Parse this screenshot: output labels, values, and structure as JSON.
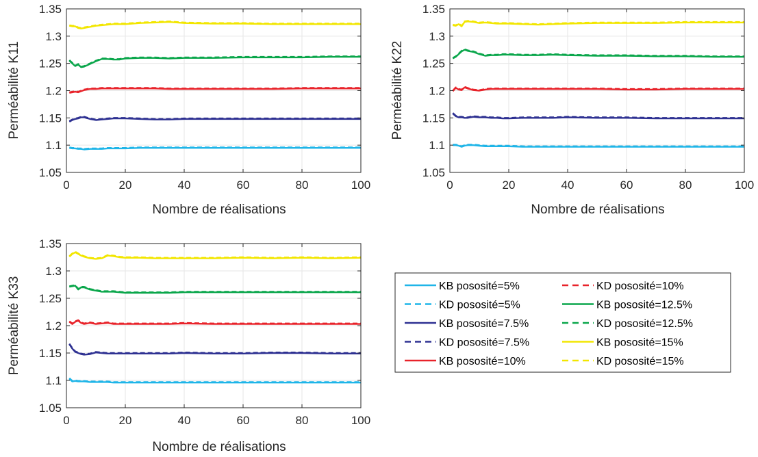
{
  "chart_data": [
    {
      "type": "line",
      "title": "",
      "xlabel": "Nombre de réalisations",
      "ylabel": "Perméabilité K11",
      "xlim": [
        0,
        100
      ],
      "ylim": [
        1.05,
        1.35
      ],
      "xticks": [
        "0",
        "20",
        "40",
        "60",
        "80",
        "100"
      ],
      "yticks": [
        "1.05",
        "1.1",
        "1.15",
        "1.2",
        "1.25",
        "1.3",
        "1.35"
      ],
      "grid": true,
      "x": [
        1,
        2,
        3,
        4,
        5,
        6,
        8,
        10,
        12,
        14,
        16,
        18,
        20,
        25,
        30,
        35,
        40,
        50,
        60,
        70,
        80,
        90,
        100
      ],
      "series": [
        {
          "key": "kb5",
          "values": [
            1.095,
            1.094,
            1.094,
            1.093,
            1.093,
            1.092,
            1.093,
            1.093,
            1.093,
            1.094,
            1.094,
            1.094,
            1.094,
            1.095,
            1.095,
            1.095,
            1.095,
            1.095,
            1.095,
            1.095,
            1.095,
            1.095,
            1.095
          ]
        },
        {
          "key": "kd5",
          "values": [
            1.096,
            1.095,
            1.095,
            1.094,
            1.094,
            1.093,
            1.094,
            1.094,
            1.094,
            1.095,
            1.095,
            1.095,
            1.095,
            1.096,
            1.096,
            1.096,
            1.096,
            1.096,
            1.096,
            1.096,
            1.096,
            1.096,
            1.096
          ]
        },
        {
          "key": "kb75",
          "values": [
            1.143,
            1.146,
            1.148,
            1.149,
            1.151,
            1.151,
            1.148,
            1.146,
            1.147,
            1.148,
            1.149,
            1.149,
            1.149,
            1.148,
            1.147,
            1.147,
            1.148,
            1.148,
            1.148,
            1.148,
            1.148,
            1.148,
            1.148
          ]
        },
        {
          "key": "kd75",
          "values": [
            1.144,
            1.147,
            1.149,
            1.15,
            1.152,
            1.152,
            1.149,
            1.147,
            1.148,
            1.149,
            1.15,
            1.15,
            1.15,
            1.149,
            1.148,
            1.148,
            1.149,
            1.149,
            1.149,
            1.149,
            1.149,
            1.149,
            1.149
          ]
        },
        {
          "key": "kb10",
          "values": [
            1.196,
            1.197,
            1.198,
            1.197,
            1.199,
            1.201,
            1.203,
            1.203,
            1.204,
            1.204,
            1.204,
            1.204,
            1.204,
            1.204,
            1.204,
            1.203,
            1.203,
            1.203,
            1.203,
            1.203,
            1.204,
            1.204,
            1.204
          ]
        },
        {
          "key": "kd10",
          "values": [
            1.197,
            1.198,
            1.199,
            1.198,
            1.2,
            1.202,
            1.204,
            1.204,
            1.205,
            1.205,
            1.205,
            1.205,
            1.205,
            1.205,
            1.205,
            1.204,
            1.204,
            1.204,
            1.204,
            1.204,
            1.205,
            1.205,
            1.205
          ]
        },
        {
          "key": "kb125",
          "values": [
            1.255,
            1.25,
            1.245,
            1.248,
            1.243,
            1.244,
            1.249,
            1.254,
            1.258,
            1.258,
            1.257,
            1.257,
            1.259,
            1.26,
            1.26,
            1.259,
            1.26,
            1.26,
            1.261,
            1.261,
            1.261,
            1.262,
            1.262
          ]
        },
        {
          "key": "kd125",
          "values": [
            1.256,
            1.251,
            1.246,
            1.249,
            1.244,
            1.245,
            1.25,
            1.255,
            1.259,
            1.259,
            1.258,
            1.258,
            1.26,
            1.261,
            1.261,
            1.26,
            1.261,
            1.261,
            1.262,
            1.262,
            1.262,
            1.263,
            1.263
          ]
        },
        {
          "key": "kb15",
          "values": [
            1.319,
            1.318,
            1.318,
            1.315,
            1.314,
            1.315,
            1.317,
            1.319,
            1.32,
            1.321,
            1.322,
            1.322,
            1.322,
            1.324,
            1.325,
            1.326,
            1.324,
            1.323,
            1.323,
            1.322,
            1.322,
            1.322,
            1.322
          ]
        },
        {
          "key": "kd15",
          "values": [
            1.32,
            1.319,
            1.319,
            1.316,
            1.315,
            1.316,
            1.318,
            1.32,
            1.321,
            1.322,
            1.323,
            1.323,
            1.323,
            1.325,
            1.326,
            1.327,
            1.325,
            1.324,
            1.324,
            1.323,
            1.323,
            1.323,
            1.323
          ]
        }
      ]
    },
    {
      "type": "line",
      "title": "",
      "xlabel": "Nombre de réalisations",
      "ylabel": "Perméabilité K22",
      "xlim": [
        0,
        100
      ],
      "ylim": [
        1.05,
        1.35
      ],
      "xticks": [
        "0",
        "20",
        "40",
        "60",
        "80",
        "100"
      ],
      "yticks": [
        "1.05",
        "1.1",
        "1.15",
        "1.2",
        "1.25",
        "1.3",
        "1.35"
      ],
      "grid": true,
      "x": [
        1,
        2,
        3,
        4,
        5,
        6,
        8,
        10,
        12,
        14,
        16,
        18,
        20,
        25,
        30,
        35,
        40,
        50,
        60,
        70,
        80,
        90,
        100
      ],
      "series": [
        {
          "key": "kb5",
          "values": [
            1.1,
            1.1,
            1.099,
            1.097,
            1.099,
            1.1,
            1.1,
            1.099,
            1.098,
            1.098,
            1.098,
            1.098,
            1.098,
            1.097,
            1.097,
            1.097,
            1.097,
            1.097,
            1.097,
            1.097,
            1.097,
            1.097,
            1.097
          ]
        },
        {
          "key": "kd5",
          "values": [
            1.101,
            1.101,
            1.1,
            1.098,
            1.1,
            1.101,
            1.101,
            1.1,
            1.099,
            1.099,
            1.099,
            1.099,
            1.099,
            1.098,
            1.098,
            1.098,
            1.098,
            1.098,
            1.098,
            1.098,
            1.098,
            1.098,
            1.098
          ]
        },
        {
          "key": "kb75",
          "values": [
            1.158,
            1.153,
            1.151,
            1.151,
            1.15,
            1.15,
            1.152,
            1.151,
            1.151,
            1.15,
            1.15,
            1.149,
            1.149,
            1.15,
            1.15,
            1.15,
            1.151,
            1.15,
            1.15,
            1.149,
            1.149,
            1.149,
            1.149
          ]
        },
        {
          "key": "kd75",
          "values": [
            1.159,
            1.154,
            1.152,
            1.152,
            1.151,
            1.151,
            1.153,
            1.152,
            1.152,
            1.151,
            1.151,
            1.15,
            1.15,
            1.151,
            1.151,
            1.151,
            1.152,
            1.151,
            1.151,
            1.15,
            1.15,
            1.15,
            1.15
          ]
        },
        {
          "key": "kb10",
          "values": [
            1.199,
            1.205,
            1.202,
            1.201,
            1.206,
            1.204,
            1.201,
            1.2,
            1.202,
            1.203,
            1.203,
            1.203,
            1.203,
            1.203,
            1.203,
            1.203,
            1.203,
            1.203,
            1.202,
            1.202,
            1.203,
            1.203,
            1.203
          ]
        },
        {
          "key": "kd10",
          "values": [
            1.2,
            1.206,
            1.203,
            1.202,
            1.207,
            1.205,
            1.202,
            1.201,
            1.203,
            1.204,
            1.204,
            1.204,
            1.204,
            1.204,
            1.204,
            1.204,
            1.204,
            1.204,
            1.203,
            1.203,
            1.204,
            1.204,
            1.204
          ]
        },
        {
          "key": "kb125",
          "values": [
            1.259,
            1.262,
            1.267,
            1.272,
            1.275,
            1.273,
            1.271,
            1.267,
            1.264,
            1.265,
            1.265,
            1.266,
            1.266,
            1.265,
            1.265,
            1.266,
            1.265,
            1.264,
            1.264,
            1.263,
            1.263,
            1.262,
            1.262
          ]
        },
        {
          "key": "kd125",
          "values": [
            1.26,
            1.263,
            1.268,
            1.273,
            1.276,
            1.274,
            1.272,
            1.268,
            1.265,
            1.266,
            1.266,
            1.267,
            1.267,
            1.266,
            1.266,
            1.267,
            1.266,
            1.265,
            1.265,
            1.264,
            1.264,
            1.263,
            1.263
          ]
        },
        {
          "key": "kb15",
          "values": [
            1.32,
            1.319,
            1.322,
            1.318,
            1.326,
            1.327,
            1.326,
            1.324,
            1.325,
            1.324,
            1.323,
            1.323,
            1.323,
            1.322,
            1.321,
            1.322,
            1.323,
            1.324,
            1.324,
            1.324,
            1.325,
            1.325,
            1.325
          ]
        },
        {
          "key": "kd15",
          "values": [
            1.321,
            1.32,
            1.323,
            1.319,
            1.327,
            1.328,
            1.327,
            1.325,
            1.326,
            1.325,
            1.324,
            1.324,
            1.324,
            1.323,
            1.322,
            1.323,
            1.324,
            1.325,
            1.325,
            1.325,
            1.326,
            1.326,
            1.326
          ]
        }
      ]
    },
    {
      "type": "line",
      "title": "",
      "xlabel": "Nombre de réalisations",
      "ylabel": "Perméabilité K33",
      "xlim": [
        0,
        100
      ],
      "ylim": [
        1.05,
        1.35
      ],
      "xticks": [
        "0",
        "20",
        "40",
        "60",
        "80",
        "100"
      ],
      "yticks": [
        "1.05",
        "1.1",
        "1.15",
        "1.2",
        "1.25",
        "1.3",
        "1.35"
      ],
      "grid": true,
      "x": [
        1,
        2,
        3,
        4,
        5,
        6,
        8,
        10,
        12,
        14,
        16,
        18,
        20,
        25,
        30,
        35,
        40,
        50,
        60,
        70,
        80,
        90,
        100
      ],
      "series": [
        {
          "key": "kb5",
          "values": [
            1.103,
            1.098,
            1.099,
            1.098,
            1.098,
            1.098,
            1.097,
            1.097,
            1.097,
            1.097,
            1.096,
            1.096,
            1.096,
            1.096,
            1.096,
            1.096,
            1.096,
            1.096,
            1.096,
            1.096,
            1.096,
            1.096,
            1.096
          ]
        },
        {
          "key": "kd5",
          "values": [
            1.104,
            1.099,
            1.1,
            1.099,
            1.099,
            1.099,
            1.098,
            1.098,
            1.098,
            1.098,
            1.097,
            1.097,
            1.097,
            1.097,
            1.097,
            1.097,
            1.097,
            1.097,
            1.097,
            1.097,
            1.097,
            1.097,
            1.097
          ]
        },
        {
          "key": "kb75",
          "values": [
            1.166,
            1.158,
            1.152,
            1.15,
            1.148,
            1.147,
            1.148,
            1.151,
            1.15,
            1.149,
            1.149,
            1.149,
            1.149,
            1.149,
            1.149,
            1.149,
            1.15,
            1.149,
            1.149,
            1.15,
            1.15,
            1.149,
            1.149
          ]
        },
        {
          "key": "kd75",
          "values": [
            1.167,
            1.159,
            1.153,
            1.151,
            1.149,
            1.148,
            1.149,
            1.152,
            1.151,
            1.15,
            1.15,
            1.15,
            1.15,
            1.15,
            1.15,
            1.15,
            1.151,
            1.15,
            1.15,
            1.151,
            1.151,
            1.15,
            1.15
          ]
        },
        {
          "key": "kb10",
          "values": [
            1.207,
            1.203,
            1.207,
            1.209,
            1.205,
            1.203,
            1.205,
            1.203,
            1.204,
            1.205,
            1.203,
            1.203,
            1.203,
            1.203,
            1.203,
            1.203,
            1.204,
            1.203,
            1.203,
            1.203,
            1.203,
            1.203,
            1.203
          ]
        },
        {
          "key": "kd10",
          "values": [
            1.208,
            1.204,
            1.208,
            1.21,
            1.206,
            1.204,
            1.206,
            1.204,
            1.205,
            1.206,
            1.204,
            1.204,
            1.204,
            1.204,
            1.204,
            1.204,
            1.205,
            1.204,
            1.204,
            1.204,
            1.204,
            1.204,
            1.204
          ]
        },
        {
          "key": "kb125",
          "values": [
            1.271,
            1.272,
            1.273,
            1.266,
            1.27,
            1.27,
            1.266,
            1.264,
            1.262,
            1.262,
            1.262,
            1.261,
            1.26,
            1.26,
            1.26,
            1.26,
            1.261,
            1.261,
            1.261,
            1.261,
            1.261,
            1.261,
            1.261
          ]
        },
        {
          "key": "kd125",
          "values": [
            1.272,
            1.273,
            1.274,
            1.267,
            1.271,
            1.271,
            1.267,
            1.265,
            1.263,
            1.263,
            1.263,
            1.262,
            1.261,
            1.261,
            1.261,
            1.261,
            1.262,
            1.262,
            1.262,
            1.262,
            1.262,
            1.262,
            1.262
          ]
        },
        {
          "key": "kb15",
          "values": [
            1.326,
            1.331,
            1.334,
            1.331,
            1.328,
            1.326,
            1.323,
            1.322,
            1.323,
            1.328,
            1.327,
            1.325,
            1.324,
            1.324,
            1.323,
            1.323,
            1.323,
            1.323,
            1.324,
            1.323,
            1.324,
            1.323,
            1.324
          ]
        },
        {
          "key": "kd15",
          "values": [
            1.327,
            1.332,
            1.335,
            1.332,
            1.329,
            1.327,
            1.324,
            1.323,
            1.324,
            1.329,
            1.328,
            1.326,
            1.325,
            1.325,
            1.324,
            1.324,
            1.324,
            1.324,
            1.325,
            1.324,
            1.325,
            1.324,
            1.325
          ]
        }
      ]
    }
  ],
  "legend": {
    "placement": "right of bottom-left panel",
    "entries": [
      {
        "key": "kb5",
        "label": "KB pososité=5%",
        "color": "#1fb5e8",
        "dash": "solid"
      },
      {
        "key": "kd5",
        "label": "KD pososité=5%",
        "color": "#1fb5e8",
        "dash": "dashed"
      },
      {
        "key": "kb75",
        "label": "KB pososité=7.5%",
        "color": "#2e3192",
        "dash": "solid"
      },
      {
        "key": "kd75",
        "label": "KD pososité=7.5%",
        "color": "#2e3192",
        "dash": "dashed"
      },
      {
        "key": "kb10",
        "label": "KB pososité=10%",
        "color": "#e8232a",
        "dash": "solid"
      },
      {
        "key": "kd10",
        "label": "KD pososité=10%",
        "color": "#e8232a",
        "dash": "dashed"
      },
      {
        "key": "kb125",
        "label": "KB pososité=12.5%",
        "color": "#0aa64b",
        "dash": "solid"
      },
      {
        "key": "kd125",
        "label": "KD pososité=12.5%",
        "color": "#0aa64b",
        "dash": "dashed"
      },
      {
        "key": "kb15",
        "label": "KB pososité=15%",
        "color": "#f2e600",
        "dash": "solid"
      },
      {
        "key": "kd15",
        "label": "KD pososité=15%",
        "color": "#f2e600",
        "dash": "dashed"
      }
    ]
  }
}
